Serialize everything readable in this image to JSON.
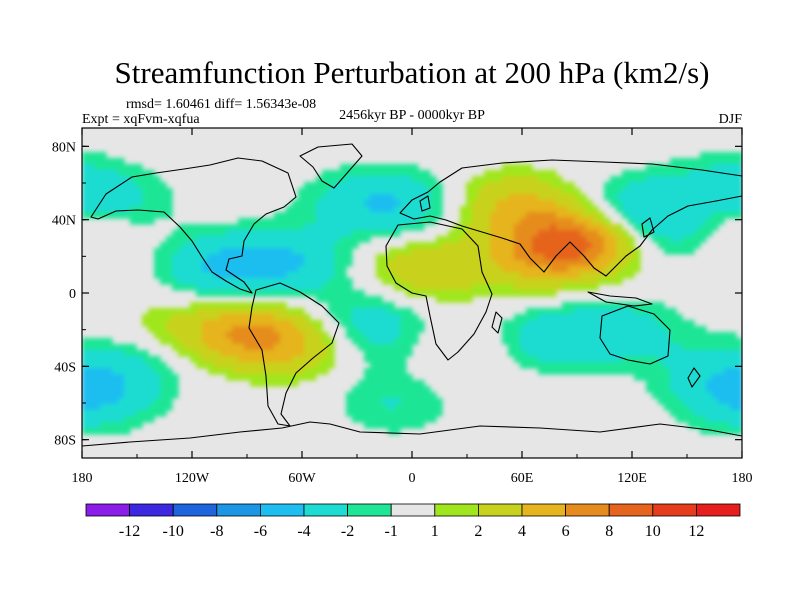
{
  "chart_data": {
    "type": "heatmap",
    "title": "Streamfunction Perturbation at 200 hPa (km2/s)",
    "stats_line": "rmsd= 1.60461 diff= 1.56343e-08",
    "expt_line": "Expt = xqFvm-xqfua",
    "period_line": "2456kyr BP - 0000kyr BP",
    "season": "DJF",
    "x_ticks": [
      "180",
      "120W",
      "60W",
      "0",
      "60E",
      "120E",
      "180"
    ],
    "x_tick_values": [
      -180,
      -120,
      -60,
      0,
      60,
      120,
      180
    ],
    "y_ticks": [
      "80N",
      "40N",
      "0",
      "40S",
      "80S"
    ],
    "y_tick_values": [
      80,
      40,
      0,
      -40,
      -80
    ],
    "xlim": [
      -180,
      180
    ],
    "ylim": [
      -90,
      90
    ],
    "colorbar": {
      "labels": [
        "-12",
        "-10",
        "-8",
        "-6",
        "-4",
        "-2",
        "-1",
        "1",
        "2",
        "4",
        "6",
        "8",
        "10",
        "12"
      ],
      "levels": [
        -12,
        -10,
        -8,
        -6,
        -4,
        -2,
        -1,
        1,
        2,
        4,
        6,
        8,
        10,
        12
      ],
      "colors": [
        "#8a1ee8",
        "#3c28e0",
        "#1e64dc",
        "#1e96e6",
        "#1ebef0",
        "#1edcd2",
        "#1ee696",
        "#e6e6e6",
        "#a0e61e",
        "#c8d21e",
        "#e6b41e",
        "#e68c1e",
        "#e6641e",
        "#e63c1e",
        "#e61e1e"
      ]
    },
    "anomaly_centers": [
      {
        "lon": -165,
        "lat": 48,
        "value": -3
      },
      {
        "lon": -178,
        "lat": 33,
        "value": 1.5
      },
      {
        "lon": -105,
        "lat": 14,
        "value": -4
      },
      {
        "lon": -65,
        "lat": 17,
        "value": -3.5
      },
      {
        "lon": -90,
        "lat": -22,
        "value": 6
      },
      {
        "lon": -140,
        "lat": -22,
        "value": 3
      },
      {
        "lon": -55,
        "lat": -30,
        "value": 3
      },
      {
        "lon": -145,
        "lat": -28,
        "value": -2.5
      },
      {
        "lon": -170,
        "lat": -57,
        "value": -2
      },
      {
        "lon": -5,
        "lat": 48,
        "value": -3
      },
      {
        "lon": -30,
        "lat": 50,
        "value": -2
      },
      {
        "lon": 5,
        "lat": 13,
        "value": 3.5
      },
      {
        "lon": -25,
        "lat": -15,
        "value": -3
      },
      {
        "lon": -20,
        "lat": -32,
        "value": -1.5
      },
      {
        "lon": -10,
        "lat": -60,
        "value": -2
      },
      {
        "lon": 25,
        "lat": -33,
        "value": 1.5
      },
      {
        "lon": 55,
        "lat": 48,
        "value": 4
      },
      {
        "lon": 90,
        "lat": 28,
        "value": 8
      },
      {
        "lon": 65,
        "lat": 18,
        "value": 3
      },
      {
        "lon": 125,
        "lat": 45,
        "value": -4
      },
      {
        "lon": 150,
        "lat": 30,
        "value": -2
      },
      {
        "lon": 75,
        "lat": -25,
        "value": -3
      },
      {
        "lon": 115,
        "lat": -20,
        "value": -2.5
      },
      {
        "lon": 160,
        "lat": -40,
        "value": -1.5
      },
      {
        "lon": 172,
        "lat": -57,
        "value": -2
      },
      {
        "lon": 172,
        "lat": 60,
        "value": -2
      },
      {
        "lon": 178,
        "lat": 38,
        "value": 1.5
      },
      {
        "lon": -160,
        "lat": -45,
        "value": -1.5
      }
    ]
  }
}
